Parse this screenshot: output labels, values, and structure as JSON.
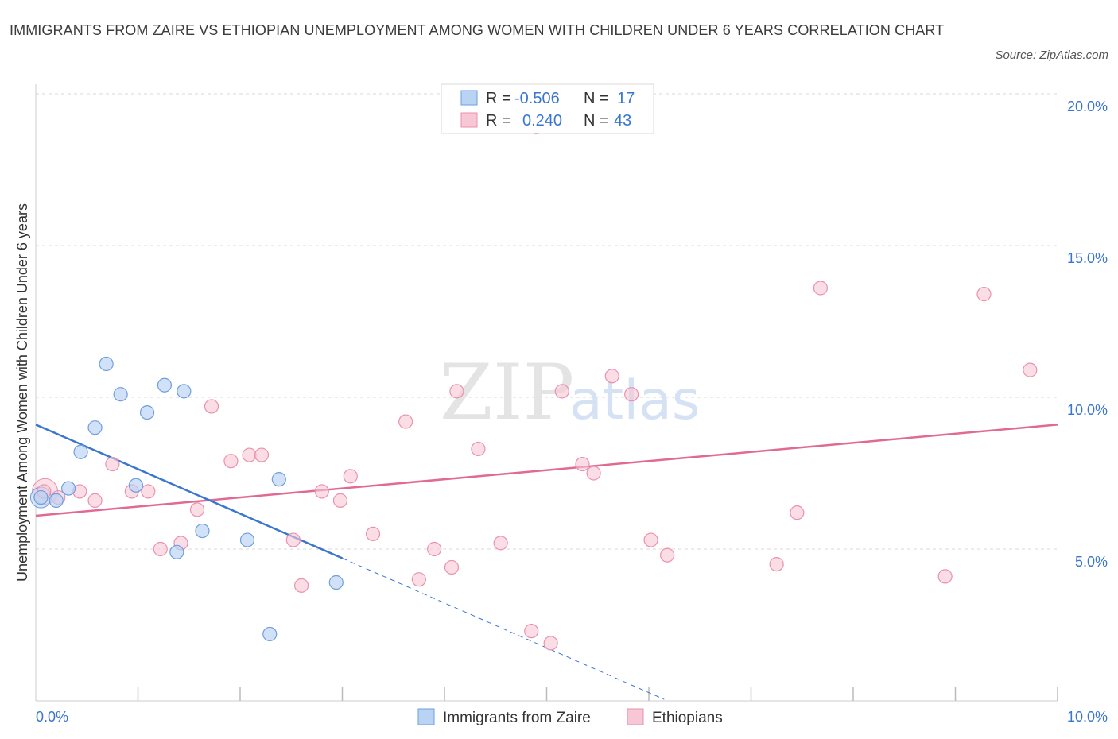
{
  "title": "IMMIGRANTS FROM ZAIRE VS ETHIOPIAN UNEMPLOYMENT AMONG WOMEN WITH CHILDREN UNDER 6 YEARS CORRELATION CHART",
  "source": "Source: ZipAtlas.com",
  "watermark": {
    "zip": "ZIP",
    "atlas": "atlas"
  },
  "colors": {
    "blue_fill": "#b9d3f5",
    "blue_stroke": "#6f9fdc",
    "blue_line": "#3a76d0",
    "pink_fill": "#f8c7d6",
    "pink_stroke": "#e992b0",
    "pink_line": "#e06a95",
    "axis_label_blue": "#3a76d0",
    "grid": "#d9d9d9"
  },
  "stats_legend": [
    {
      "r_label": "R =",
      "r_value": "-0.506",
      "n_label": "N =",
      "n_value": "17"
    },
    {
      "r_label": "R =",
      "r_value": "0.240",
      "n_label": "N =",
      "n_value": "43"
    }
  ],
  "chart_data": {
    "type": "scatter",
    "title": "IMMIGRANTS FROM ZAIRE VS ETHIOPIAN UNEMPLOYMENT AMONG WOMEN WITH CHILDREN UNDER 6 YEARS CORRELATION CHART",
    "xlabel": "",
    "ylabel": "Unemployment Among Women with Children Under 6 years",
    "xlim": [
      0,
      10
    ],
    "ylim": [
      0,
      20
    ],
    "x_tick_labels": [
      {
        "value": 0,
        "label": "0.0%"
      },
      {
        "value": 10,
        "label": "10.0%"
      }
    ],
    "y_tick_labels": [
      {
        "value": 5,
        "label": "5.0%"
      },
      {
        "value": 10,
        "label": "10.0%"
      },
      {
        "value": 15,
        "label": "15.0%"
      },
      {
        "value": 20,
        "label": "20.0%"
      }
    ],
    "x_minor_ticks": [
      1,
      2,
      3,
      4,
      5,
      6,
      7,
      8,
      9,
      10
    ],
    "grid": true,
    "series": [
      {
        "name": "Immigrants from Zaire",
        "color": "blue",
        "points": [
          [
            0.05,
            6.7
          ],
          [
            0.2,
            6.6
          ],
          [
            0.32,
            7.0
          ],
          [
            0.44,
            8.2
          ],
          [
            0.58,
            9.0
          ],
          [
            0.69,
            11.1
          ],
          [
            0.83,
            10.1
          ],
          [
            0.98,
            7.1
          ],
          [
            1.09,
            9.5
          ],
          [
            1.26,
            10.4
          ],
          [
            1.38,
            4.9
          ],
          [
            1.45,
            10.2
          ],
          [
            1.63,
            5.6
          ],
          [
            2.07,
            5.3
          ],
          [
            2.29,
            2.2
          ],
          [
            2.38,
            7.3
          ],
          [
            2.94,
            3.9
          ]
        ],
        "trend": {
          "x0": 0.0,
          "y0": 9.1,
          "x1": 3.0,
          "y1": 4.7,
          "dash_to_x": 6.15,
          "dash_to_y": 0.05
        }
      },
      {
        "name": "Ethiopians",
        "color": "pink",
        "points": [
          [
            0.08,
            6.9
          ],
          [
            0.22,
            6.7
          ],
          [
            0.43,
            6.9
          ],
          [
            0.58,
            6.6
          ],
          [
            0.75,
            7.8
          ],
          [
            0.94,
            6.9
          ],
          [
            1.1,
            6.9
          ],
          [
            1.22,
            5.0
          ],
          [
            1.42,
            5.2
          ],
          [
            1.58,
            6.3
          ],
          [
            1.72,
            9.7
          ],
          [
            1.91,
            7.9
          ],
          [
            2.09,
            8.1
          ],
          [
            2.21,
            8.1
          ],
          [
            2.52,
            5.3
          ],
          [
            2.6,
            3.8
          ],
          [
            2.8,
            6.9
          ],
          [
            2.98,
            6.6
          ],
          [
            3.08,
            7.4
          ],
          [
            3.3,
            5.5
          ],
          [
            3.62,
            9.2
          ],
          [
            3.75,
            4.0
          ],
          [
            3.9,
            5.0
          ],
          [
            4.07,
            4.4
          ],
          [
            4.12,
            10.2
          ],
          [
            4.33,
            8.3
          ],
          [
            4.55,
            5.2
          ],
          [
            4.85,
            2.3
          ],
          [
            4.9,
            18.9
          ],
          [
            5.04,
            1.9
          ],
          [
            5.15,
            10.2
          ],
          [
            5.35,
            7.8
          ],
          [
            5.46,
            7.5
          ],
          [
            5.64,
            10.7
          ],
          [
            5.83,
            10.1
          ],
          [
            6.02,
            5.3
          ],
          [
            6.18,
            4.8
          ],
          [
            7.25,
            4.5
          ],
          [
            7.45,
            6.2
          ],
          [
            7.68,
            13.6
          ],
          [
            8.9,
            4.1
          ],
          [
            9.28,
            13.4
          ],
          [
            9.73,
            10.9
          ]
        ],
        "trend": {
          "x0": 0.0,
          "y0": 6.1,
          "x1": 10.0,
          "y1": 9.1
        }
      }
    ],
    "legend": [
      {
        "label": "Immigrants from Zaire",
        "color": "blue"
      },
      {
        "label": "Ethiopians",
        "color": "pink"
      }
    ]
  }
}
